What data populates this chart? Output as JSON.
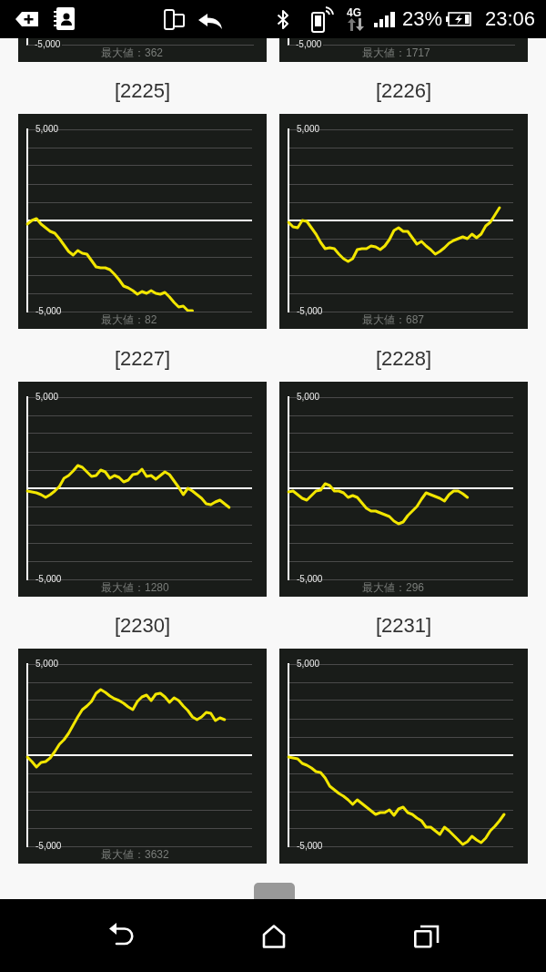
{
  "chart_data": [
    {
      "type": "other",
      "annotations": [
        "4G",
        "23%",
        "23:06"
      ]
    },
    {
      "type": "other",
      "annotations": [
        "-5,000",
        "最大値：362"
      ]
    },
    {
      "type": "other",
      "annotations": [
        "-5,000",
        "最大値：1717"
      ]
    },
    {
      "type": "line",
      "title": "[2225]",
      "color": "#f2e600",
      "grid": "y",
      "ylim": [
        -5000,
        5000
      ],
      "yticks": [
        {
          "value": 5000,
          "label": "5,000"
        },
        {
          "value": 4000,
          "label": null
        },
        {
          "value": 3000,
          "label": null
        },
        {
          "value": 2000,
          "label": null
        },
        {
          "value": 1000,
          "label": null
        },
        {
          "value": 0,
          "label": null
        },
        {
          "value": -1000,
          "label": null
        },
        {
          "value": -2000,
          "label": null
        },
        {
          "value": -3000,
          "label": null
        },
        {
          "value": -4000,
          "label": null
        },
        {
          "value": -5000,
          "label": "-5,000"
        }
      ],
      "ref_lines": [
        {
          "axis": "y",
          "value": 0,
          "color": "#ffffff"
        }
      ],
      "annotations": [
        "最大値：82"
      ],
      "categories": [
        null,
        null,
        null,
        null,
        null,
        null,
        null,
        null,
        null,
        null,
        null,
        null,
        null,
        null,
        null,
        null,
        null,
        null,
        null,
        null,
        null,
        null,
        null,
        null,
        null,
        null,
        null,
        null,
        null,
        null,
        null,
        null,
        null,
        null,
        null,
        null,
        null,
        null,
        null,
        null,
        null,
        null,
        null,
        null,
        null,
        null,
        null,
        null,
        null,
        null
      ],
      "values": [
        -200,
        0,
        100,
        -200,
        -400,
        -600,
        -700,
        -1000,
        -1350,
        -1700,
        -1900,
        -1650,
        -1800,
        -1850,
        -2200,
        -2550,
        -2600,
        -2600,
        -2700,
        -2950,
        -3250,
        -3600,
        -3700,
        -3850,
        -4050,
        -3900,
        -4000,
        -3850,
        -4000,
        -4050,
        -3950,
        -4200,
        -4500,
        -4750,
        -4700,
        -4950,
        -4950,
        null,
        null,
        null,
        null,
        null,
        null,
        null,
        null,
        null,
        null,
        null,
        null,
        null
      ]
    },
    {
      "type": "line",
      "title": "[2226]",
      "color": "#f2e600",
      "grid": "y",
      "ylim": [
        -5000,
        5000
      ],
      "yticks": [
        {
          "value": 5000,
          "label": "5,000"
        },
        {
          "value": 4000,
          "label": null
        },
        {
          "value": 3000,
          "label": null
        },
        {
          "value": 2000,
          "label": null
        },
        {
          "value": 1000,
          "label": null
        },
        {
          "value": 0,
          "label": null
        },
        {
          "value": -1000,
          "label": null
        },
        {
          "value": -2000,
          "label": null
        },
        {
          "value": -3000,
          "label": null
        },
        {
          "value": -4000,
          "label": null
        },
        {
          "value": -5000,
          "label": "-5,000"
        }
      ],
      "ref_lines": [
        {
          "axis": "y",
          "value": 0,
          "color": "#ffffff"
        }
      ],
      "annotations": [
        "最大値：687"
      ],
      "categories": [
        null,
        null,
        null,
        null,
        null,
        null,
        null,
        null,
        null,
        null,
        null,
        null,
        null,
        null,
        null,
        null,
        null,
        null,
        null,
        null,
        null,
        null,
        null,
        null,
        null,
        null,
        null,
        null,
        null,
        null,
        null,
        null,
        null,
        null,
        null,
        null,
        null,
        null,
        null,
        null,
        null,
        null,
        null,
        null,
        null,
        null,
        null,
        null,
        null,
        null
      ],
      "values": [
        -100,
        -350,
        -400,
        0,
        -50,
        -400,
        -750,
        -1200,
        -1550,
        -1500,
        -1550,
        -1850,
        -2100,
        -2250,
        -2100,
        -1600,
        -1550,
        -1550,
        -1400,
        -1450,
        -1600,
        -1400,
        -1050,
        -550,
        -400,
        -600,
        -600,
        -950,
        -1300,
        -1150,
        -1400,
        -1600,
        -1850,
        -1700,
        -1500,
        -1250,
        -1100,
        -1000,
        -900,
        -1000,
        -750,
        -950,
        -750,
        -300,
        -100,
        300,
        700,
        null,
        null,
        null
      ]
    },
    {
      "type": "line",
      "title": "[2227]",
      "color": "#f2e600",
      "grid": "y",
      "ylim": [
        -5000,
        5000
      ],
      "yticks": [
        {
          "value": 5000,
          "label": "5,000"
        },
        {
          "value": 4000,
          "label": null
        },
        {
          "value": 3000,
          "label": null
        },
        {
          "value": 2000,
          "label": null
        },
        {
          "value": 1000,
          "label": null
        },
        {
          "value": 0,
          "label": null
        },
        {
          "value": -1000,
          "label": null
        },
        {
          "value": -2000,
          "label": null
        },
        {
          "value": -3000,
          "label": null
        },
        {
          "value": -4000,
          "label": null
        },
        {
          "value": -5000,
          "label": "-5,000"
        }
      ],
      "ref_lines": [
        {
          "axis": "y",
          "value": 0,
          "color": "#ffffff"
        }
      ],
      "annotations": [
        "最大値：1280"
      ],
      "categories": [
        null,
        null,
        null,
        null,
        null,
        null,
        null,
        null,
        null,
        null,
        null,
        null,
        null,
        null,
        null,
        null,
        null,
        null,
        null,
        null,
        null,
        null,
        null,
        null,
        null,
        null,
        null,
        null,
        null,
        null,
        null,
        null,
        null,
        null,
        null,
        null,
        null,
        null,
        null,
        null,
        null,
        null,
        null,
        null,
        null,
        null,
        null,
        null,
        null,
        null
      ],
      "values": [
        -150,
        -200,
        -250,
        -350,
        -500,
        -350,
        -150,
        100,
        550,
        700,
        950,
        1250,
        1150,
        900,
        650,
        700,
        1000,
        900,
        550,
        700,
        600,
        350,
        450,
        750,
        800,
        1050,
        650,
        700,
        500,
        700,
        900,
        750,
        400,
        50,
        -350,
        0,
        -150,
        -350,
        -550,
        -850,
        -900,
        -750,
        -650,
        -850,
        -1050,
        null,
        null,
        null,
        null,
        null
      ]
    },
    {
      "type": "line",
      "title": "[2228]",
      "color": "#f2e600",
      "grid": "y",
      "ylim": [
        -5000,
        5000
      ],
      "yticks": [
        {
          "value": 5000,
          "label": "5,000"
        },
        {
          "value": 4000,
          "label": null
        },
        {
          "value": 3000,
          "label": null
        },
        {
          "value": 2000,
          "label": null
        },
        {
          "value": 1000,
          "label": null
        },
        {
          "value": 0,
          "label": null
        },
        {
          "value": -1000,
          "label": null
        },
        {
          "value": -2000,
          "label": null
        },
        {
          "value": -3000,
          "label": null
        },
        {
          "value": -4000,
          "label": null
        },
        {
          "value": -5000,
          "label": "-5,000"
        }
      ],
      "ref_lines": [
        {
          "axis": "y",
          "value": 0,
          "color": "#ffffff"
        }
      ],
      "annotations": [
        "最大値：296"
      ],
      "categories": [
        null,
        null,
        null,
        null,
        null,
        null,
        null,
        null,
        null,
        null,
        null,
        null,
        null,
        null,
        null,
        null,
        null,
        null,
        null,
        null,
        null,
        null,
        null,
        null,
        null,
        null,
        null,
        null,
        null,
        null,
        null,
        null,
        null,
        null,
        null,
        null,
        null,
        null,
        null,
        null,
        null,
        null,
        null,
        null,
        null,
        null,
        null,
        null,
        null,
        null
      ],
      "values": [
        -200,
        -150,
        -350,
        -550,
        -650,
        -400,
        -150,
        -100,
        250,
        150,
        -150,
        -150,
        -250,
        -500,
        -400,
        -500,
        -800,
        -1100,
        -1250,
        -1250,
        -1350,
        -1450,
        -1550,
        -1800,
        -1950,
        -1850,
        -1500,
        -1250,
        -1000,
        -600,
        -250,
        -350,
        -450,
        -550,
        -700,
        -350,
        -150,
        -150,
        -300,
        -500,
        null,
        null,
        null,
        null,
        null,
        null,
        null,
        null,
        null,
        null
      ]
    },
    {
      "type": "line",
      "title": "[2230]",
      "color": "#f2e600",
      "grid": "y",
      "ylim": [
        -5000,
        5000
      ],
      "yticks": [
        {
          "value": 5000,
          "label": "5,000"
        },
        {
          "value": 4000,
          "label": null
        },
        {
          "value": 3000,
          "label": null
        },
        {
          "value": 2000,
          "label": null
        },
        {
          "value": 1000,
          "label": null
        },
        {
          "value": 0,
          "label": null
        },
        {
          "value": -1000,
          "label": null
        },
        {
          "value": -2000,
          "label": null
        },
        {
          "value": -3000,
          "label": null
        },
        {
          "value": -4000,
          "label": null
        },
        {
          "value": -5000,
          "label": "-5,000"
        }
      ],
      "ref_lines": [
        {
          "axis": "y",
          "value": 0,
          "color": "#ffffff"
        }
      ],
      "annotations": [
        "最大値：3632"
      ],
      "categories": [
        null,
        null,
        null,
        null,
        null,
        null,
        null,
        null,
        null,
        null,
        null,
        null,
        null,
        null,
        null,
        null,
        null,
        null,
        null,
        null,
        null,
        null,
        null,
        null,
        null,
        null,
        null,
        null,
        null,
        null,
        null,
        null,
        null,
        null,
        null,
        null,
        null,
        null,
        null,
        null,
        null,
        null,
        null,
        null,
        null,
        null,
        null,
        null,
        null,
        null
      ],
      "values": [
        -100,
        -350,
        -650,
        -400,
        -350,
        -150,
        200,
        600,
        850,
        1200,
        1650,
        2100,
        2500,
        2700,
        2950,
        3400,
        3600,
        3450,
        3250,
        3100,
        3000,
        2850,
        2650,
        2500,
        2950,
        3200,
        3300,
        3000,
        3350,
        3400,
        3200,
        2900,
        3150,
        3000,
        2700,
        2450,
        2100,
        1950,
        2100,
        2350,
        2300,
        1900,
        2050,
        1950,
        null,
        null,
        null,
        null,
        null,
        null
      ]
    },
    {
      "type": "line",
      "title": "[2231]",
      "color": "#f2e600",
      "grid": "y",
      "ylim": [
        -5000,
        5000
      ],
      "yticks": [
        {
          "value": 5000,
          "label": "5,000"
        },
        {
          "value": 4000,
          "label": null
        },
        {
          "value": 3000,
          "label": null
        },
        {
          "value": 2000,
          "label": null
        },
        {
          "value": 1000,
          "label": null
        },
        {
          "value": 0,
          "label": null
        },
        {
          "value": -1000,
          "label": null
        },
        {
          "value": -2000,
          "label": null
        },
        {
          "value": -3000,
          "label": null
        },
        {
          "value": -4000,
          "label": null
        },
        {
          "value": -5000,
          "label": "-5,000"
        }
      ],
      "ref_lines": [
        {
          "axis": "y",
          "value": 0,
          "color": "#ffffff"
        }
      ],
      "categories": [
        null,
        null,
        null,
        null,
        null,
        null,
        null,
        null,
        null,
        null,
        null,
        null,
        null,
        null,
        null,
        null,
        null,
        null,
        null,
        null,
        null,
        null,
        null,
        null,
        null,
        null,
        null,
        null,
        null,
        null,
        null,
        null,
        null,
        null,
        null,
        null,
        null,
        null,
        null,
        null,
        null,
        null,
        null,
        null,
        null,
        null,
        null,
        null,
        null,
        null
      ],
      "values": [
        -100,
        -150,
        -200,
        -450,
        -550,
        -700,
        -900,
        -950,
        -1250,
        -1700,
        -1900,
        -2100,
        -2250,
        -2450,
        -2700,
        -2450,
        -2650,
        -2850,
        -3050,
        -3250,
        -3150,
        -3150,
        -3000,
        -3300,
        -2950,
        -2850,
        -3150,
        -3250,
        -3450,
        -3600,
        -3950,
        -3950,
        -4150,
        -4350,
        -3950,
        -4150,
        -4400,
        -4650,
        -4900,
        -4750,
        -4450,
        -4650,
        -4800,
        -4550,
        -4150,
        -3900,
        -3600,
        -3250,
        null,
        null
      ]
    }
  ]
}
